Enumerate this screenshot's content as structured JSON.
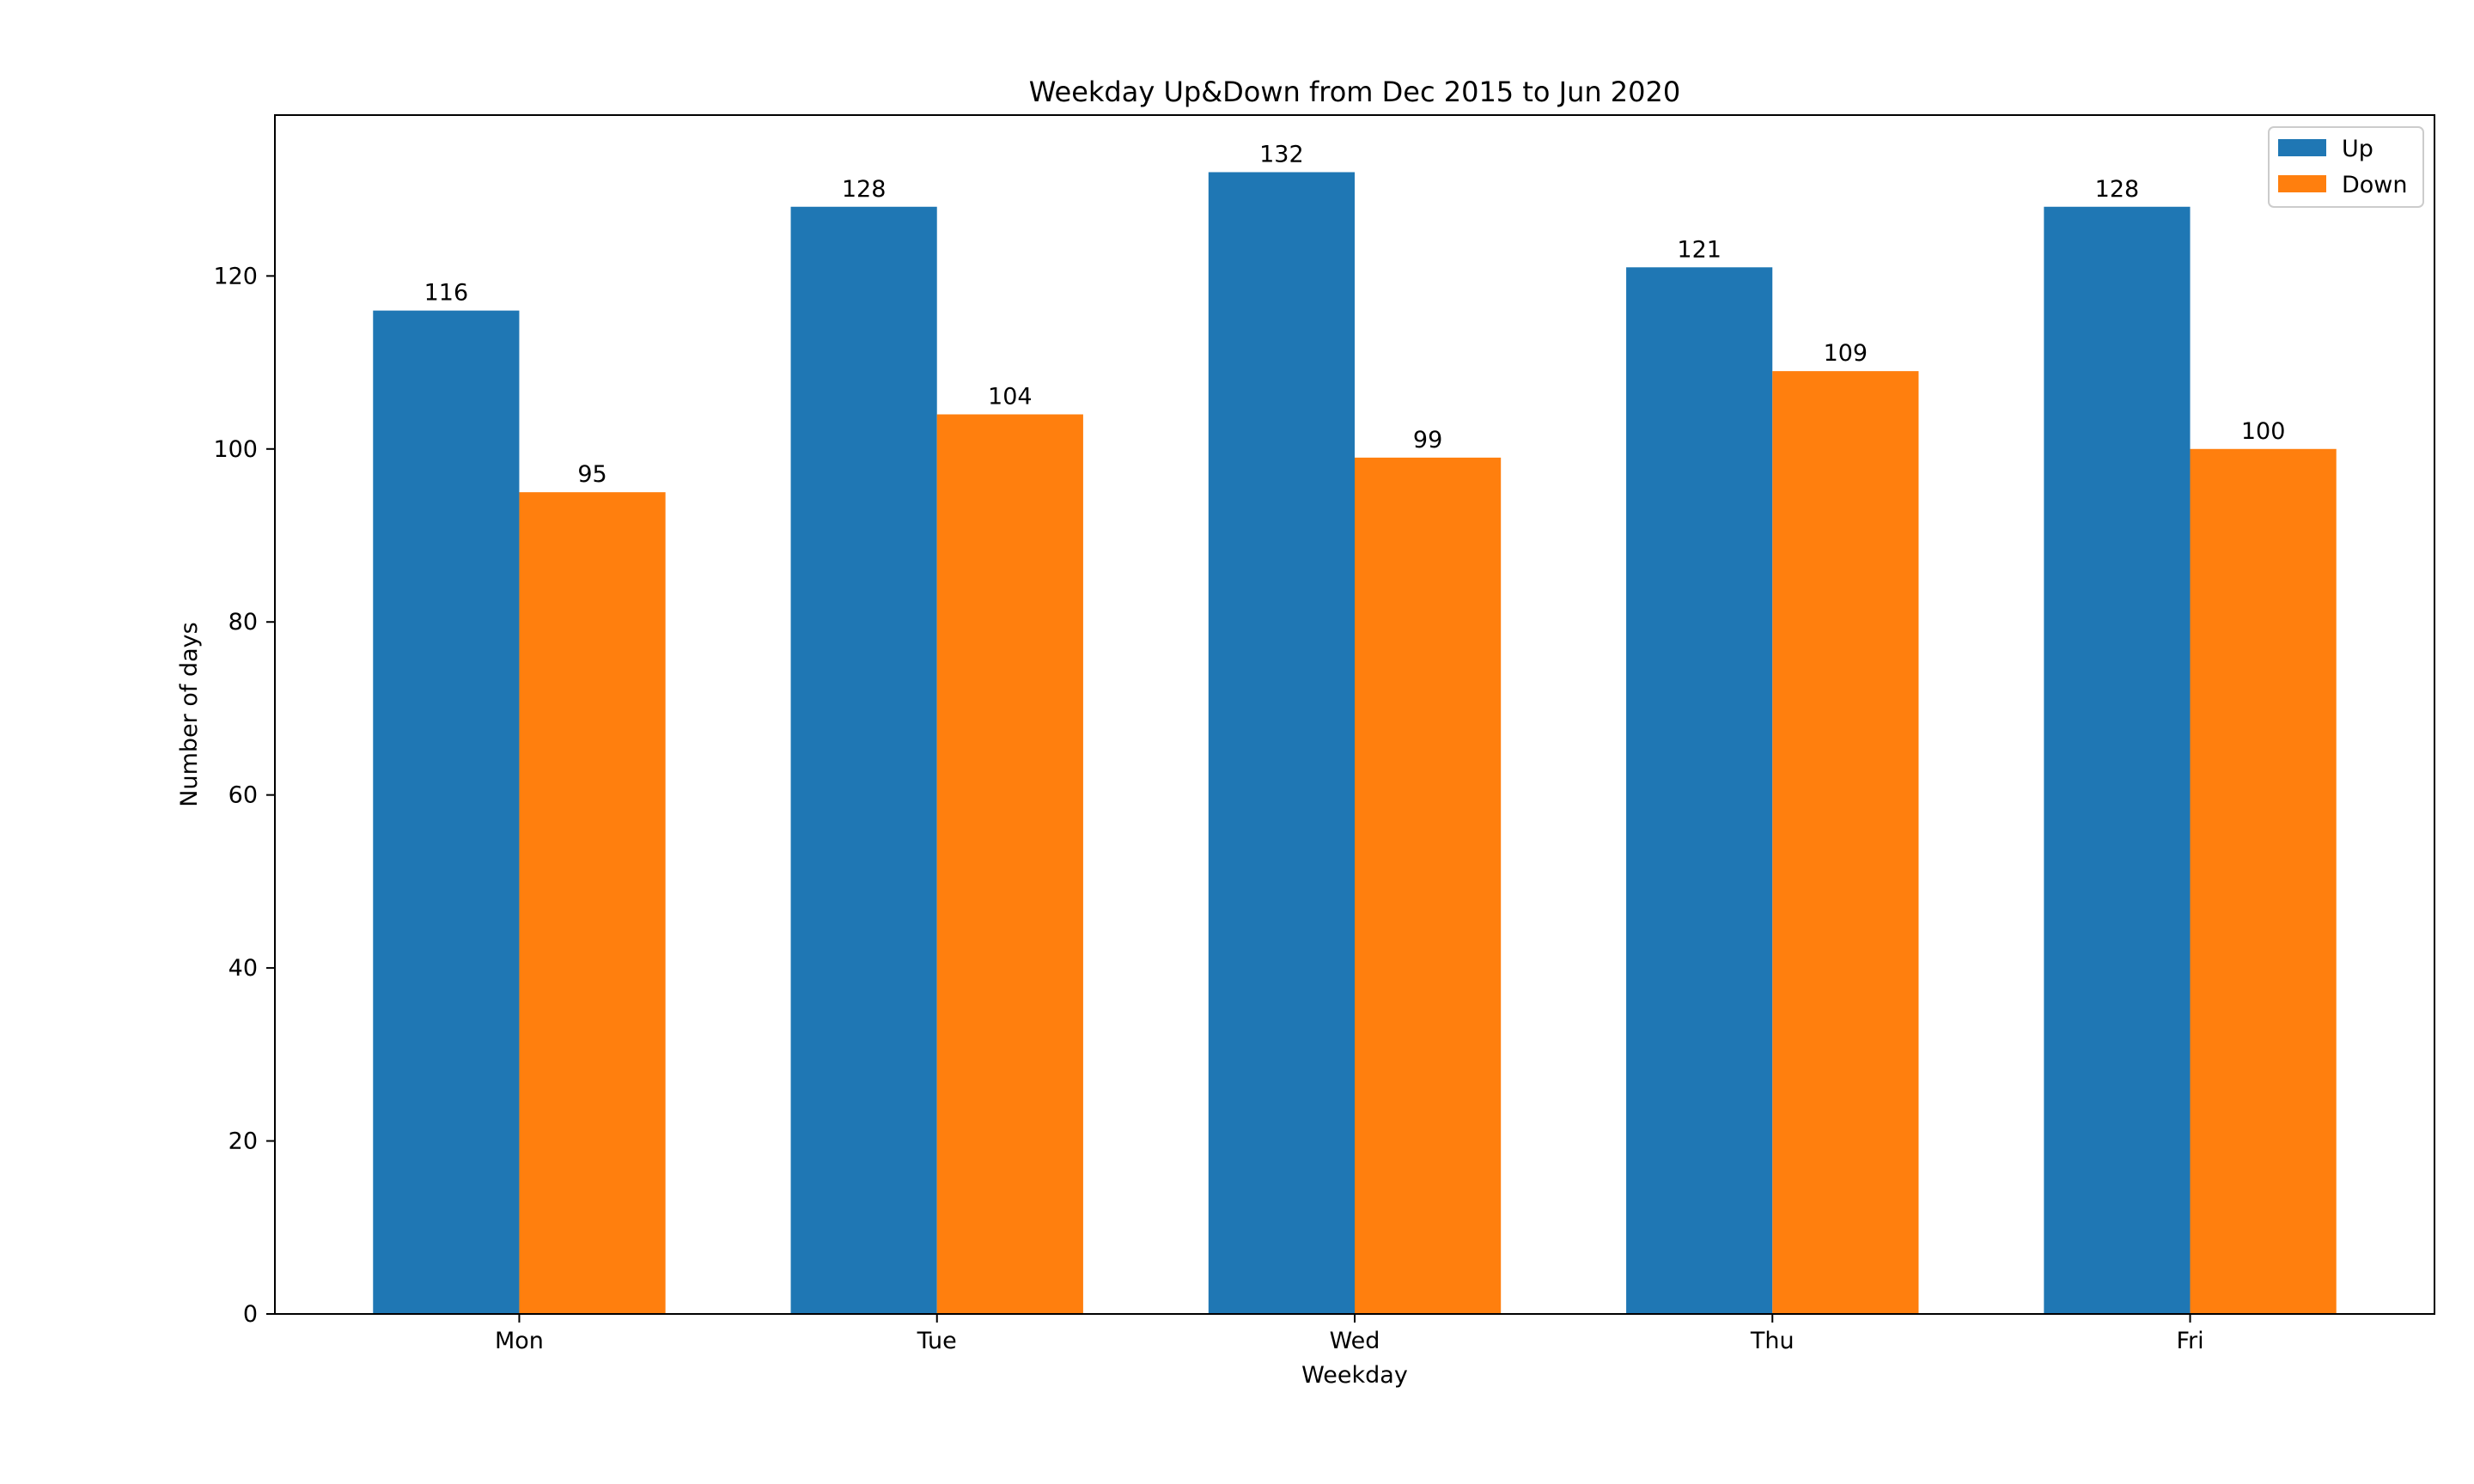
{
  "chart_data": {
    "type": "bar",
    "title": "Weekday Up&Down from Dec 2015 to Jun 2020",
    "xlabel": "Weekday",
    "ylabel": "Number of days",
    "categories": [
      "Mon",
      "Tue",
      "Wed",
      "Thu",
      "Fri"
    ],
    "series": [
      {
        "name": "Up",
        "color": "#1f77b4",
        "values": [
          116,
          128,
          132,
          121,
          128
        ]
      },
      {
        "name": "Down",
        "color": "#ff7f0e",
        "values": [
          95,
          104,
          99,
          109,
          100
        ]
      }
    ],
    "ylim": [
      0,
      138.6
    ],
    "yticks": [
      0,
      20,
      40,
      60,
      80,
      100,
      120
    ],
    "grid": false,
    "legend_position": "top-right"
  }
}
